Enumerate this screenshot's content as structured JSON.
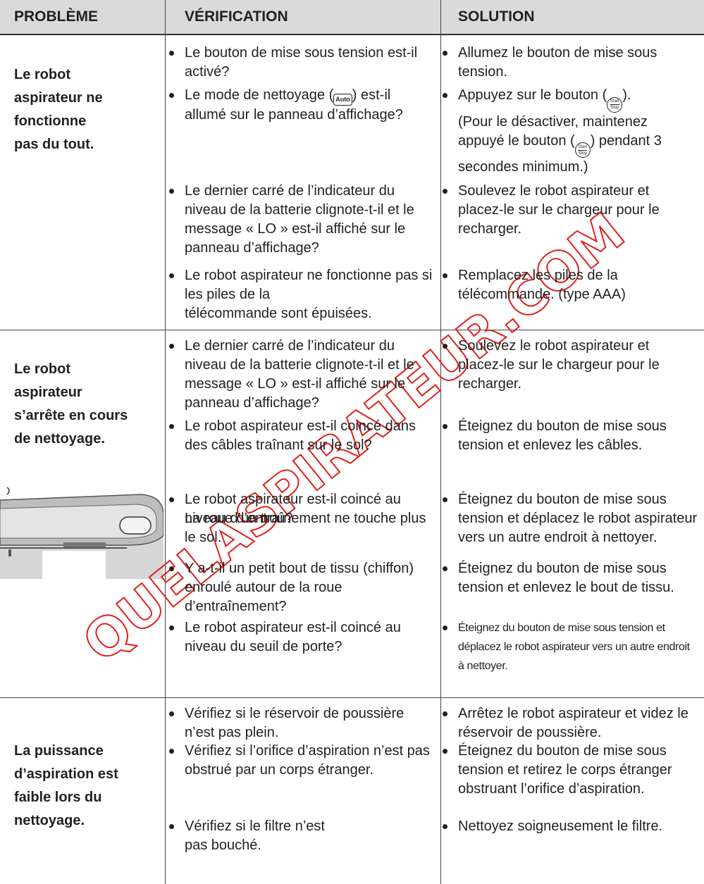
{
  "header": {
    "problem": "PROBLÈME",
    "verification": "VÉRIFICATION",
    "solution": "SOLUTION"
  },
  "rows": [
    {
      "problem": [
        "Le robot",
        "aspirateur ne",
        "fonctionne",
        "pas du tout."
      ],
      "items": [
        {
          "check": "Le bouton de mise sous tension est-il activé?",
          "solution": "Allumez le bouton de mise sous tension."
        },
        {
          "check": [
            "Le mode de nettoyage (",
            {
              "icon": "Auto"
            },
            ") est-il allumé sur le panneau d’affichage?"
          ],
          "solution": [
            "Appuyez sur le bouton (",
            {
              "top": "Start",
              "bottom": "Stop"
            },
            ").\n(Pour le désactiver, maintenez appuyé le bouton (",
            {
              "top": "Start",
              "bottom": "Stop"
            },
            ") pendant 3 secondes minimum.)"
          ]
        },
        {
          "check": "Le dernier carré de l’indicateur du niveau de la batterie clignote-t-il et le message « LO » est-il affiché sur le panneau d’affichage?",
          "solution": "Soulevez le robot aspirateur et placez-le sur le chargeur pour le recharger."
        },
        {
          "check": "Le robot aspirateur ne fonctionne pas si les piles de la\ntélécommande sont épuisées.",
          "solution": "Remplacez les piles de la télécommande. (type AAA)"
        }
      ]
    },
    {
      "problem": [
        "Le robot",
        "aspirateur",
        "s’arrête en cours",
        "de nettoyage."
      ],
      "items": [
        {
          "check": "Le dernier carré de l’indicateur du niveau de la batterie clignote-t-il et le message « LO » est-il affiché sur le panneau d’affichage?",
          "solution": "Soulevez le robot aspirateur et placez-le sur le chargeur pour le recharger."
        },
        {
          "check": "Le robot aspirateur est-il coincé dans des câbles traînant sur le sol?",
          "solution": "Éteignez du bouton de mise sous tension et enlevez les câbles."
        },
        {
          "check": "Le robot aspirateur est-il coincé au niveau d’un trou?",
          "note": "La roue d’entraînement ne touche plus le sol.",
          "solution": "Éteignez du bouton de mise sous tension et déplacez le robot aspirateur vers un autre endroit à nettoyer."
        },
        {
          "check": "Y a-t-il un petit bout de tissu (chiffon) enroulé autour de la roue d’entraînement?",
          "solution": "Éteignez du bouton de mise sous tension et enlevez le bout de tissu."
        },
        {
          "check": "Le robot aspirateur est-il coincé au niveau du seuil de porte?",
          "solution": "Éteignez du bouton de mise sous tension et déplacez le robot aspirateur vers un autre endroit à nettoyer."
        }
      ]
    },
    {
      "problem": [
        "La puissance",
        "d’aspiration est",
        "faible lors du",
        "nettoyage."
      ],
      "items": [
        {
          "check": "Vérifiez si le réservoir de poussière n’est pas plein.",
          "solution": "Arrêtez le robot aspirateur et videz le réservoir de poussière."
        },
        {
          "check": "Vérifiez si l’orifice d’aspiration n’est pas obstrué par un corps étranger.",
          "solution": "Éteignez du bouton de mise sous tension et retirez le corps étranger obstruant l’orifice d’aspiration."
        },
        {
          "check": "Vérifiez si le filtre n’est\npas bouché.",
          "solution": "Nettoyez soigneusement le filtre."
        }
      ]
    }
  ],
  "watermark": "QUELASPIRATEUR.COM"
}
